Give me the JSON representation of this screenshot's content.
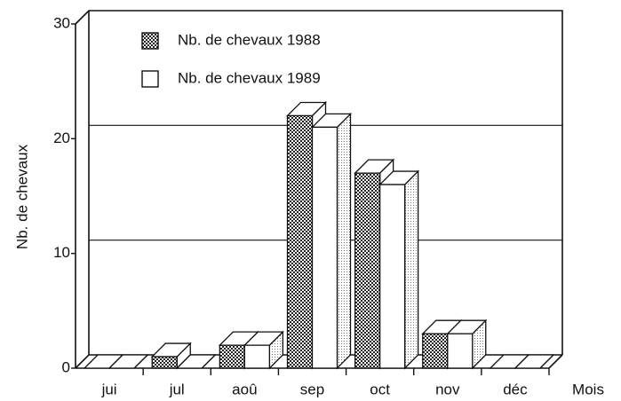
{
  "chart_data": {
    "type": "bar3d",
    "ylabel": "Nb. de chevaux",
    "xlabel": "Mois",
    "categories": [
      "jui",
      "jul",
      "aoû",
      "sep",
      "oct",
      "nov",
      "déc"
    ],
    "series": [
      {
        "name": "Nb. de chevaux 1988",
        "color": "#222222",
        "values": [
          0,
          1,
          2,
          22,
          17,
          3,
          0
        ]
      },
      {
        "name": "Nb. de chevaux 1989",
        "color": "#ffffff",
        "values": [
          0,
          0,
          2,
          21,
          16,
          3,
          0
        ]
      }
    ],
    "ylim": [
      0,
      30
    ],
    "yticks": [
      0,
      10,
      20,
      30
    ],
    "grid": true
  }
}
